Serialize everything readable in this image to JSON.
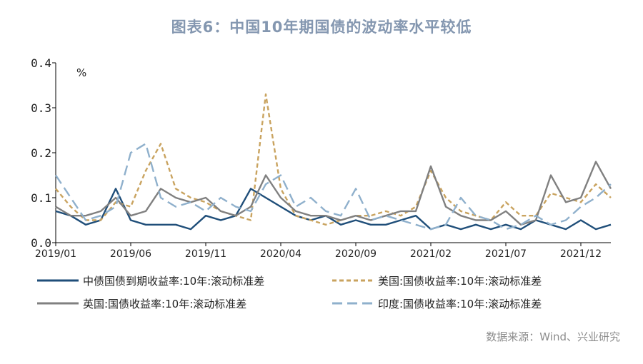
{
  "chart_data": {
    "type": "line",
    "title": "图表6：中国10年期国债的波动率水平较低",
    "y_unit": "%",
    "ylim": [
      0,
      0.4
    ],
    "y_ticks": [
      "0.0",
      "0.1",
      "0.2",
      "0.3",
      "0.4"
    ],
    "x_tick_labels": [
      "2019/01",
      "2019/06",
      "2019/11",
      "2020/04",
      "2020/09",
      "2021/02",
      "2021/07",
      "2021/12"
    ],
    "x_range": [
      "2019-01",
      "2022-02"
    ],
    "grid": false,
    "legend_position": "bottom",
    "series": [
      {
        "name": "中债国债到期收益率:10年:滚动标准差",
        "color": "#1f4e79",
        "dash": "solid",
        "x": [
          "2019-01",
          "2019-02",
          "2019-03",
          "2019-04",
          "2019-05",
          "2019-06",
          "2019-07",
          "2019-08",
          "2019-09",
          "2019-10",
          "2019-11",
          "2019-12",
          "2020-01",
          "2020-02",
          "2020-03",
          "2020-04",
          "2020-05",
          "2020-06",
          "2020-07",
          "2020-08",
          "2020-09",
          "2020-10",
          "2020-11",
          "2020-12",
          "2021-01",
          "2021-02",
          "2021-03",
          "2021-04",
          "2021-05",
          "2021-06",
          "2021-07",
          "2021-08",
          "2021-09",
          "2021-10",
          "2021-11",
          "2021-12",
          "2022-01",
          "2022-02"
        ],
        "values": [
          0.07,
          0.06,
          0.04,
          0.05,
          0.12,
          0.05,
          0.04,
          0.04,
          0.04,
          0.03,
          0.06,
          0.05,
          0.06,
          0.12,
          0.1,
          0.08,
          0.06,
          0.05,
          0.06,
          0.04,
          0.05,
          0.04,
          0.04,
          0.05,
          0.06,
          0.03,
          0.04,
          0.03,
          0.04,
          0.03,
          0.04,
          0.03,
          0.05,
          0.04,
          0.03,
          0.05,
          0.03,
          0.04
        ]
      },
      {
        "name": "美国:国债收益率:10年:滚动标准差",
        "color": "#c9a35f",
        "dash": "short",
        "x": [
          "2019-01",
          "2019-02",
          "2019-03",
          "2019-04",
          "2019-05",
          "2019-06",
          "2019-07",
          "2019-08",
          "2019-09",
          "2019-10",
          "2019-11",
          "2019-12",
          "2020-01",
          "2020-02",
          "2020-03",
          "2020-04",
          "2020-05",
          "2020-06",
          "2020-07",
          "2020-08",
          "2020-09",
          "2020-10",
          "2020-11",
          "2020-12",
          "2021-01",
          "2021-02",
          "2021-03",
          "2021-04",
          "2021-05",
          "2021-06",
          "2021-07",
          "2021-08",
          "2021-09",
          "2021-10",
          "2021-11",
          "2021-12",
          "2022-01",
          "2022-02"
        ],
        "values": [
          0.12,
          0.08,
          0.05,
          0.05,
          0.09,
          0.08,
          0.16,
          0.22,
          0.12,
          0.1,
          0.09,
          0.07,
          0.06,
          0.05,
          0.33,
          0.12,
          0.06,
          0.05,
          0.04,
          0.05,
          0.06,
          0.06,
          0.07,
          0.06,
          0.08,
          0.16,
          0.1,
          0.07,
          0.06,
          0.05,
          0.09,
          0.06,
          0.06,
          0.11,
          0.1,
          0.09,
          0.13,
          0.1
        ]
      },
      {
        "name": "英国:国债收益率:10年:滚动标准差",
        "color": "#808080",
        "dash": "solid",
        "x": [
          "2019-01",
          "2019-02",
          "2019-03",
          "2019-04",
          "2019-05",
          "2019-06",
          "2019-07",
          "2019-08",
          "2019-09",
          "2019-10",
          "2019-11",
          "2019-12",
          "2020-01",
          "2020-02",
          "2020-03",
          "2020-04",
          "2020-05",
          "2020-06",
          "2020-07",
          "2020-08",
          "2020-09",
          "2020-10",
          "2020-11",
          "2020-12",
          "2021-01",
          "2021-02",
          "2021-03",
          "2021-04",
          "2021-05",
          "2021-06",
          "2021-07",
          "2021-08",
          "2021-09",
          "2021-10",
          "2021-11",
          "2021-12",
          "2022-01",
          "2022-02"
        ],
        "values": [
          0.08,
          0.06,
          0.06,
          0.07,
          0.1,
          0.06,
          0.07,
          0.12,
          0.1,
          0.09,
          0.1,
          0.07,
          0.06,
          0.08,
          0.15,
          0.1,
          0.07,
          0.06,
          0.06,
          0.05,
          0.06,
          0.05,
          0.06,
          0.07,
          0.07,
          0.17,
          0.08,
          0.06,
          0.05,
          0.05,
          0.07,
          0.04,
          0.05,
          0.15,
          0.09,
          0.1,
          0.18,
          0.12
        ]
      },
      {
        "name": "印度:国债收益率:10年:滚动标准差",
        "color": "#8fb0cc",
        "dash": "long",
        "x": [
          "2019-01",
          "2019-02",
          "2019-03",
          "2019-04",
          "2019-05",
          "2019-06",
          "2019-07",
          "2019-08",
          "2019-09",
          "2019-10",
          "2019-11",
          "2019-12",
          "2020-01",
          "2020-02",
          "2020-03",
          "2020-04",
          "2020-05",
          "2020-06",
          "2020-07",
          "2020-08",
          "2020-09",
          "2020-10",
          "2020-11",
          "2020-12",
          "2021-01",
          "2021-02",
          "2021-03",
          "2021-04",
          "2021-05",
          "2021-06",
          "2021-07",
          "2021-08",
          "2021-09",
          "2021-10",
          "2021-11",
          "2021-12",
          "2022-01",
          "2022-02"
        ],
        "values": [
          0.15,
          0.1,
          0.05,
          0.06,
          0.08,
          0.2,
          0.22,
          0.1,
          0.08,
          0.09,
          0.07,
          0.1,
          0.08,
          0.07,
          0.13,
          0.15,
          0.08,
          0.1,
          0.07,
          0.06,
          0.12,
          0.05,
          0.06,
          0.05,
          0.04,
          0.03,
          0.04,
          0.1,
          0.06,
          0.05,
          0.03,
          0.04,
          0.06,
          0.04,
          0.05,
          0.08,
          0.1,
          0.13
        ]
      }
    ]
  },
  "source_note": "数据来源：Wind、兴业研究"
}
